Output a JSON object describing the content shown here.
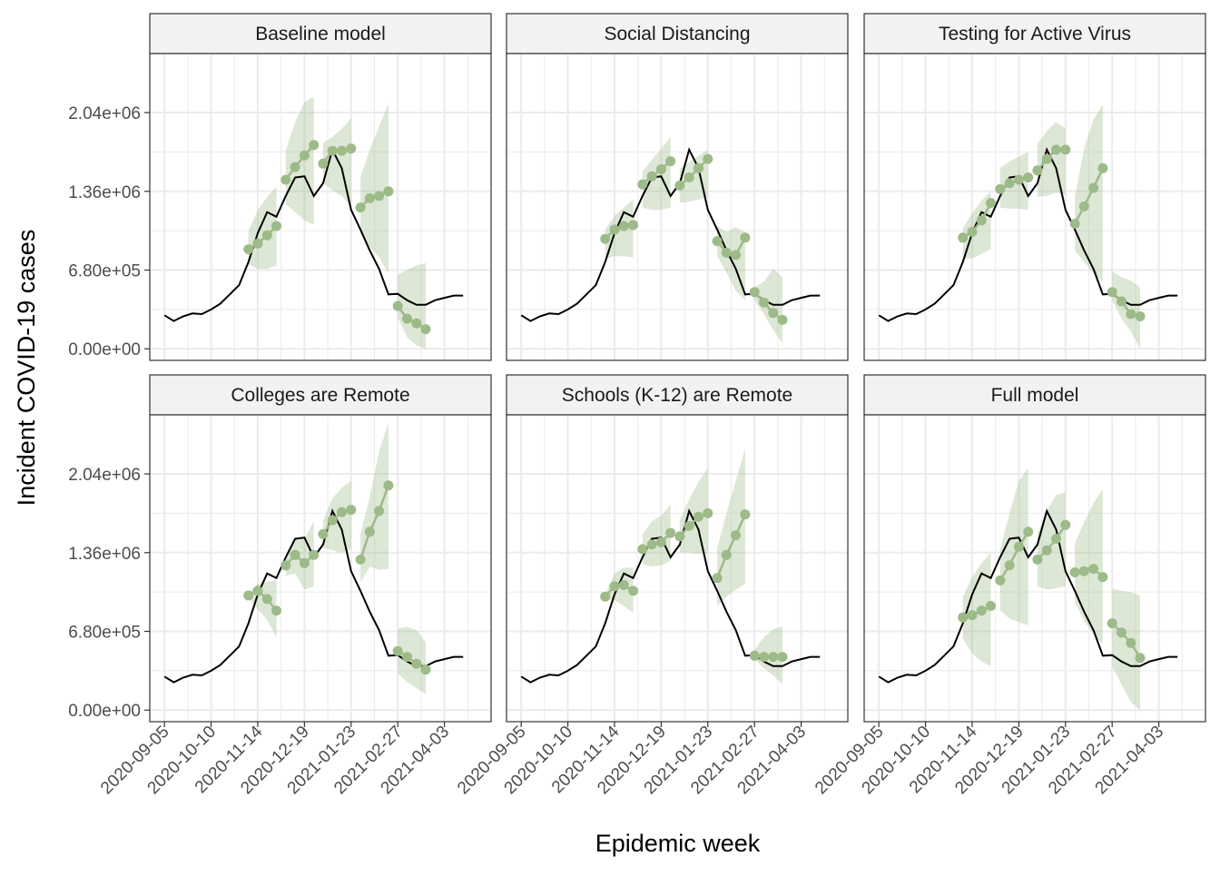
{
  "chart_data": {
    "type": "line",
    "xlabel": "Epidemic week",
    "ylabel": "Incident COVID-19 cases",
    "ylim": [
      -100000,
      2550000
    ],
    "yticks": [
      0,
      680000,
      1360000,
      2040000
    ],
    "ytick_labels": [
      "0.00e+00",
      "6.80e+05",
      "1.36e+06",
      "2.04e+06"
    ],
    "xlim": [
      "2020-08-25",
      "2021-05-08"
    ],
    "xticks": [
      "2020-09-05",
      "2020-10-10",
      "2020-11-14",
      "2020-12-19",
      "2021-01-23",
      "2021-02-27",
      "2021-04-03"
    ],
    "grid": true,
    "colors": {
      "observed": "#000000",
      "forecast": "#9dba89",
      "band": "#9dba89",
      "strip": "#f2f2f2",
      "grid": "#ebebeb"
    },
    "observed": {
      "x": [
        "2020-09-05",
        "2020-09-12",
        "2020-09-19",
        "2020-09-26",
        "2020-10-03",
        "2020-10-10",
        "2020-10-17",
        "2020-10-24",
        "2020-10-31",
        "2020-11-07",
        "2020-11-14",
        "2020-11-21",
        "2020-11-28",
        "2020-12-05",
        "2020-12-12",
        "2020-12-19",
        "2020-12-26",
        "2021-01-02",
        "2021-01-09",
        "2021-01-16",
        "2021-01-23",
        "2021-01-30",
        "2021-02-06",
        "2021-02-13",
        "2021-02-20",
        "2021-02-27",
        "2021-03-06",
        "2021-03-13",
        "2021-03-20",
        "2021-03-27",
        "2021-04-03",
        "2021-04-10",
        "2021-04-17"
      ],
      "y": [
        290000,
        240000,
        280000,
        305000,
        300000,
        340000,
        390000,
        470000,
        550000,
        750000,
        1000000,
        1180000,
        1140000,
        1320000,
        1480000,
        1490000,
        1320000,
        1430000,
        1720000,
        1560000,
        1200000,
        1030000,
        850000,
        690000,
        470000,
        475000,
        420000,
        380000,
        380000,
        420000,
        440000,
        460000,
        460000
      ]
    },
    "panels": [
      {
        "title": "Baseline model",
        "forecasts": [
          {
            "x": [
              "2020-11-07",
              "2020-11-14",
              "2020-11-21",
              "2020-11-28"
            ],
            "y": [
              860000,
              910000,
              980000,
              1060000
            ],
            "lower": [
              730000,
              690000,
              690000,
              720000
            ],
            "upper": [
              1020000,
              1200000,
              1310000,
              1400000
            ]
          },
          {
            "x": [
              "2020-12-05",
              "2020-12-12",
              "2020-12-19",
              "2020-12-26"
            ],
            "y": [
              1460000,
              1570000,
              1670000,
              1760000
            ],
            "lower": [
              1250000,
              1180000,
              1110000,
              1070000
            ],
            "upper": [
              1710000,
              1960000,
              2130000,
              2180000
            ]
          },
          {
            "x": [
              "2021-01-02",
              "2021-01-09",
              "2021-01-16",
              "2021-01-23"
            ],
            "y": [
              1600000,
              1710000,
              1710000,
              1730000
            ],
            "lower": [
              1430000,
              1370000,
              1320000,
              1230000
            ],
            "upper": [
              1780000,
              1830000,
              1900000,
              1990000
            ]
          },
          {
            "x": [
              "2021-01-30",
              "2021-02-06",
              "2021-02-13",
              "2021-02-20"
            ],
            "y": [
              1220000,
              1300000,
              1320000,
              1360000
            ],
            "lower": [
              1000000,
              880000,
              790000,
              650000
            ],
            "upper": [
              1480000,
              1720000,
              1920000,
              2120000
            ]
          },
          {
            "x": [
              "2021-02-27",
              "2021-03-06",
              "2021-03-13",
              "2021-03-20"
            ],
            "y": [
              370000,
              260000,
              220000,
              170000
            ],
            "lower": [
              270000,
              100000,
              30000,
              0
            ],
            "upper": [
              640000,
              680000,
              720000,
              740000
            ]
          }
        ]
      },
      {
        "title": "Social Distancing",
        "forecasts": [
          {
            "x": [
              "2020-11-07",
              "2020-11-14",
              "2020-11-21",
              "2020-11-28"
            ],
            "y": [
              950000,
              1030000,
              1060000,
              1070000
            ],
            "lower": [
              780000,
              800000,
              800000,
              790000
            ],
            "upper": [
              1030000,
              1150000,
              1220000,
              1290000
            ]
          },
          {
            "x": [
              "2020-12-05",
              "2020-12-12",
              "2020-12-19",
              "2020-12-26"
            ],
            "y": [
              1420000,
              1490000,
              1550000,
              1620000
            ],
            "lower": [
              1220000,
              1200000,
              1200000,
              1220000
            ],
            "upper": [
              1530000,
              1630000,
              1730000,
              1830000
            ]
          },
          {
            "x": [
              "2021-01-02",
              "2021-01-09",
              "2021-01-16",
              "2021-01-23"
            ],
            "y": [
              1410000,
              1480000,
              1560000,
              1640000
            ],
            "lower": [
              1260000,
              1270000,
              1290000,
              1310000
            ],
            "upper": [
              1560000,
              1610000,
              1670000,
              1720000
            ]
          },
          {
            "x": [
              "2021-01-30",
              "2021-02-06",
              "2021-02-13",
              "2021-02-20"
            ],
            "y": [
              930000,
              830000,
              810000,
              960000
            ],
            "lower": [
              800000,
              660000,
              500000,
              420000
            ],
            "upper": [
              1060000,
              1010000,
              1050000,
              1010000
            ]
          },
          {
            "x": [
              "2021-02-27",
              "2021-03-06",
              "2021-03-13",
              "2021-03-20"
            ],
            "y": [
              490000,
              400000,
              310000,
              250000
            ],
            "lower": [
              420000,
              300000,
              160000,
              50000
            ],
            "upper": [
              530000,
              580000,
              690000,
              620000
            ]
          }
        ]
      },
      {
        "title": "Testing for Active Virus",
        "forecasts": [
          {
            "x": [
              "2020-11-07",
              "2020-11-14",
              "2020-11-21",
              "2020-11-28"
            ],
            "y": [
              960000,
              1010000,
              1110000,
              1260000
            ],
            "lower": [
              780000,
              780000,
              820000,
              860000
            ],
            "upper": [
              1040000,
              1170000,
              1280000,
              1360000
            ]
          },
          {
            "x": [
              "2020-12-05",
              "2020-12-12",
              "2020-12-19",
              "2020-12-26"
            ],
            "y": [
              1380000,
              1430000,
              1460000,
              1480000
            ],
            "lower": [
              1220000,
              1210000,
              1210000,
              1200000
            ],
            "upper": [
              1560000,
              1620000,
              1660000,
              1700000
            ]
          },
          {
            "x": [
              "2021-01-02",
              "2021-01-09",
              "2021-01-16",
              "2021-01-23"
            ],
            "y": [
              1540000,
              1640000,
              1720000,
              1720000
            ],
            "lower": [
              1310000,
              1320000,
              1350000,
              1330000
            ],
            "upper": [
              1770000,
              1880000,
              1960000,
              1900000
            ]
          },
          {
            "x": [
              "2021-01-30",
              "2021-02-06",
              "2021-02-13",
              "2021-02-20"
            ],
            "y": [
              1080000,
              1230000,
              1390000,
              1560000
            ],
            "lower": [
              850000,
              750000,
              650000,
              580000
            ],
            "upper": [
              1310000,
              1730000,
              1980000,
              2110000
            ]
          },
          {
            "x": [
              "2021-02-27",
              "2021-03-06",
              "2021-03-13",
              "2021-03-20"
            ],
            "y": [
              490000,
              410000,
              300000,
              280000
            ],
            "lower": [
              420000,
              260000,
              150000,
              0
            ],
            "upper": [
              670000,
              620000,
              590000,
              530000
            ]
          }
        ]
      },
      {
        "title": "Colleges are Remote",
        "forecasts": [
          {
            "x": [
              "2020-11-07",
              "2020-11-14",
              "2020-11-21",
              "2020-11-28"
            ],
            "y": [
              990000,
              1030000,
              960000,
              860000
            ],
            "lower": [
              970000,
              870000,
              780000,
              630000
            ],
            "upper": [
              1010000,
              1090000,
              1110000,
              1120000
            ]
          },
          {
            "x": [
              "2020-12-05",
              "2020-12-12",
              "2020-12-19",
              "2020-12-26"
            ],
            "y": [
              1250000,
              1340000,
              1270000,
              1340000
            ],
            "lower": [
              1160000,
              1180000,
              1040000,
              1070000
            ],
            "upper": [
              1340000,
              1470000,
              1480000,
              1630000
            ]
          },
          {
            "x": [
              "2021-01-02",
              "2021-01-09",
              "2021-01-16",
              "2021-01-23"
            ],
            "y": [
              1520000,
              1640000,
              1710000,
              1730000
            ],
            "lower": [
              1400000,
              1380000,
              1360000,
              1390000
            ],
            "upper": [
              1640000,
              1830000,
              1920000,
              1980000
            ]
          },
          {
            "x": [
              "2021-01-30",
              "2021-02-06",
              "2021-02-13",
              "2021-02-20"
            ],
            "y": [
              1300000,
              1540000,
              1720000,
              1940000
            ],
            "lower": [
              1100000,
              1240000,
              1210000,
              1220000
            ],
            "upper": [
              1520000,
              1840000,
              2230000,
              2480000
            ]
          },
          {
            "x": [
              "2021-02-27",
              "2021-03-06",
              "2021-03-13",
              "2021-03-20"
            ],
            "y": [
              510000,
              460000,
              400000,
              350000
            ],
            "lower": [
              320000,
              240000,
              190000,
              140000
            ],
            "upper": [
              700000,
              720000,
              690000,
              590000
            ]
          }
        ]
      },
      {
        "title": "Schools (K-12) are Remote",
        "forecasts": [
          {
            "x": [
              "2020-11-07",
              "2020-11-14",
              "2020-11-21",
              "2020-11-28"
            ],
            "y": [
              980000,
              1070000,
              1080000,
              1030000
            ],
            "lower": [
              960000,
              950000,
              900000,
              840000
            ],
            "upper": [
              1000000,
              1180000,
              1230000,
              1230000
            ]
          },
          {
            "x": [
              "2020-12-05",
              "2020-12-12",
              "2020-12-19",
              "2020-12-26"
            ],
            "y": [
              1390000,
              1430000,
              1450000,
              1530000
            ],
            "lower": [
              1260000,
              1240000,
              1250000,
              1290000
            ],
            "upper": [
              1520000,
              1630000,
              1680000,
              1780000
            ]
          },
          {
            "x": [
              "2021-01-02",
              "2021-01-09",
              "2021-01-16",
              "2021-01-23"
            ],
            "y": [
              1500000,
              1590000,
              1670000,
              1700000
            ],
            "lower": [
              1360000,
              1360000,
              1350000,
              1350000
            ],
            "upper": [
              1640000,
              1820000,
              1970000,
              2090000
            ]
          },
          {
            "x": [
              "2021-01-30",
              "2021-02-06",
              "2021-02-13",
              "2021-02-20"
            ],
            "y": [
              1140000,
              1340000,
              1510000,
              1690000
            ],
            "lower": [
              900000,
              980000,
              1040000,
              1090000
            ],
            "upper": [
              1400000,
              1700000,
              1980000,
              2260000
            ]
          },
          {
            "x": [
              "2021-02-27",
              "2021-03-06",
              "2021-03-13",
              "2021-03-20"
            ],
            "y": [
              470000,
              460000,
              460000,
              460000
            ],
            "lower": [
              440000,
              360000,
              300000,
              220000
            ],
            "upper": [
              520000,
              630000,
              700000,
              720000
            ]
          }
        ]
      },
      {
        "title": "Full model",
        "forecasts": [
          {
            "x": [
              "2020-11-07",
              "2020-11-14",
              "2020-11-21",
              "2020-11-28"
            ],
            "y": [
              800000,
              820000,
              860000,
              900000
            ],
            "lower": [
              620000,
              490000,
              420000,
              380000
            ],
            "upper": [
              980000,
              1150000,
              1270000,
              1360000
            ]
          },
          {
            "x": [
              "2020-12-05",
              "2020-12-12",
              "2020-12-19",
              "2020-12-26"
            ],
            "y": [
              1120000,
              1250000,
              1410000,
              1540000
            ],
            "lower": [
              860000,
              790000,
              760000,
              730000
            ],
            "upper": [
              1390000,
              1700000,
              1980000,
              2090000
            ]
          },
          {
            "x": [
              "2021-01-02",
              "2021-01-09",
              "2021-01-16",
              "2021-01-23"
            ],
            "y": [
              1300000,
              1380000,
              1480000,
              1600000
            ],
            "lower": [
              1070000,
              1040000,
              1050000,
              1070000
            ],
            "upper": [
              1530000,
              1720000,
              1860000,
              1880000
            ]
          },
          {
            "x": [
              "2021-01-30",
              "2021-02-06",
              "2021-02-13",
              "2021-02-20"
            ],
            "y": [
              1190000,
              1200000,
              1220000,
              1150000
            ],
            "lower": [
              930000,
              770000,
              650000,
              570000
            ],
            "upper": [
              1440000,
              1620000,
              1790000,
              1910000
            ]
          },
          {
            "x": [
              "2021-02-27",
              "2021-03-06",
              "2021-03-13",
              "2021-03-20"
            ],
            "y": [
              750000,
              670000,
              580000,
              450000
            ],
            "lower": [
              380000,
              220000,
              70000,
              0
            ],
            "upper": [
              1050000,
              1030000,
              1020000,
              990000
            ]
          }
        ]
      }
    ]
  }
}
